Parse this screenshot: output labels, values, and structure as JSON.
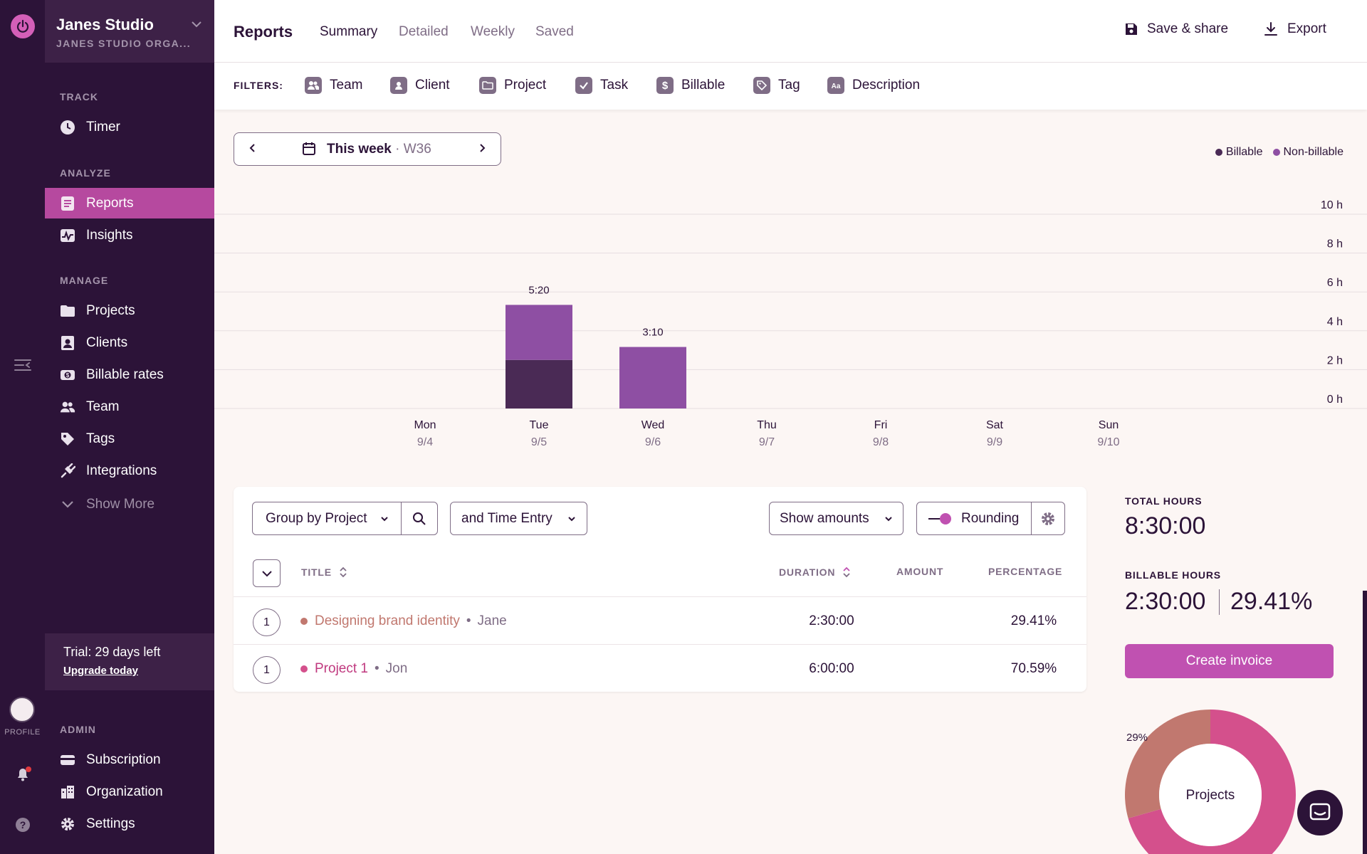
{
  "workspace": {
    "name": "Janes Studio",
    "org": "JANES STUDIO ORGA..."
  },
  "rail": {
    "profile_label": "PROFILE"
  },
  "sidebar": {
    "sections": {
      "track": "TRACK",
      "analyze": "ANALYZE",
      "manage": "MANAGE",
      "admin": "ADMIN"
    },
    "items": {
      "timer": "Timer",
      "reports": "Reports",
      "insights": "Insights",
      "projects": "Projects",
      "clients": "Clients",
      "billable_rates": "Billable rates",
      "team": "Team",
      "tags": "Tags",
      "integrations": "Integrations",
      "show_more": "Show More",
      "subscription": "Subscription",
      "organization": "Organization",
      "settings": "Settings"
    },
    "trial": {
      "text": "Trial: 29 days left",
      "link": "Upgrade today"
    }
  },
  "header": {
    "title": "Reports",
    "tabs": [
      "Summary",
      "Detailed",
      "Weekly",
      "Saved"
    ],
    "active_tab": "Summary",
    "save_share": "Save & share",
    "export": "Export"
  },
  "filters": {
    "label": "FILTERS:",
    "items": [
      "Team",
      "Client",
      "Project",
      "Task",
      "Billable",
      "Tag",
      "Description"
    ]
  },
  "date_picker": {
    "label": "This week",
    "week": "W36"
  },
  "colors": {
    "billable": "#4a2a55",
    "non_billable": "#8e4fa3",
    "accent": "#c051b1",
    "project_brand": "#c1786f",
    "project_1": "#d4508c"
  },
  "chart_data": {
    "type": "bar",
    "stacked": true,
    "categories": [
      "Mon",
      "Tue",
      "Wed",
      "Thu",
      "Fri",
      "Sat",
      "Sun"
    ],
    "dates": [
      "9/4",
      "9/5",
      "9/6",
      "9/7",
      "9/8",
      "9/9",
      "9/10"
    ],
    "series": [
      {
        "name": "Billable",
        "values": [
          0,
          2.5,
          0,
          0,
          0,
          0,
          0
        ]
      },
      {
        "name": "Non-billable",
        "values": [
          0,
          2.833,
          3.167,
          0,
          0,
          0,
          0
        ]
      }
    ],
    "totals_labels": [
      "",
      "5:20",
      "3:10",
      "",
      "",
      "",
      ""
    ],
    "yticks": [
      "10 h",
      "8 h",
      "6 h",
      "4 h",
      "2 h",
      "0 h"
    ],
    "ylim": [
      0,
      10
    ],
    "grid": true,
    "legend": "top-right"
  },
  "table": {
    "group_by": "Group by Project",
    "sub_group": "and Time Entry",
    "show_amounts": "Show amounts",
    "rounding": "Rounding",
    "columns": {
      "title": "TITLE",
      "duration": "DURATION",
      "amount": "AMOUNT",
      "percentage": "PERCENTAGE"
    },
    "rows": [
      {
        "count": "1",
        "title": "Designing brand identity",
        "member": "Jane",
        "duration": "2:30:00",
        "percentage": "29.41%",
        "color": "#c1786f"
      },
      {
        "count": "1",
        "title": "Project 1",
        "member": "Jon",
        "duration": "6:00:00",
        "percentage": "70.59%",
        "color": "#d4508c"
      }
    ]
  },
  "stats": {
    "total_label": "TOTAL HOURS",
    "total_value": "8:30:00",
    "billable_label": "BILLABLE HOURS",
    "billable_value": "2:30:00",
    "billable_pct": "29.41%",
    "invoice_button": "Create invoice"
  },
  "donut": {
    "center_label": "Projects",
    "slice_label": "29%",
    "slices": [
      {
        "label": "Designing brand identity",
        "value": 29.41,
        "color": "#c1786f"
      },
      {
        "label": "Project 1",
        "value": 70.59,
        "color": "#d4508c"
      }
    ]
  }
}
